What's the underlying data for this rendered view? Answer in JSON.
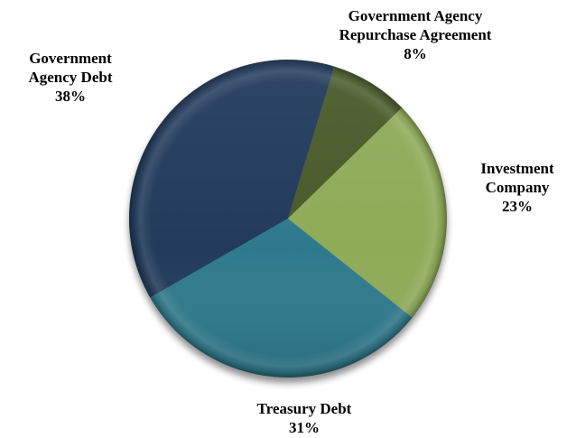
{
  "chart_data": {
    "type": "pie",
    "title": "",
    "slices": [
      {
        "name": "Government Agency Repurchase Agreement",
        "label_lines": [
          "Government Agency",
          "Repurchase Agreement"
        ],
        "percent_label": "8%",
        "value": 8,
        "color": "#4a5a2a"
      },
      {
        "name": "Investment Company",
        "label_lines": [
          "Investment",
          "Company"
        ],
        "percent_label": "23%",
        "value": 23,
        "color": "#8fab58"
      },
      {
        "name": "Treasury Debt",
        "label_lines": [
          "Treasury Debt"
        ],
        "percent_label": "31%",
        "value": 31,
        "color": "#2f7a8c"
      },
      {
        "name": "Government Agency Debt",
        "label_lines": [
          "Government",
          "Agency Debt"
        ],
        "percent_label": "38%",
        "value": 38,
        "color": "#243b5c"
      }
    ],
    "start_angle_deg": 17,
    "direction": "clockwise",
    "legend": "none",
    "labels": "outside-slices"
  }
}
